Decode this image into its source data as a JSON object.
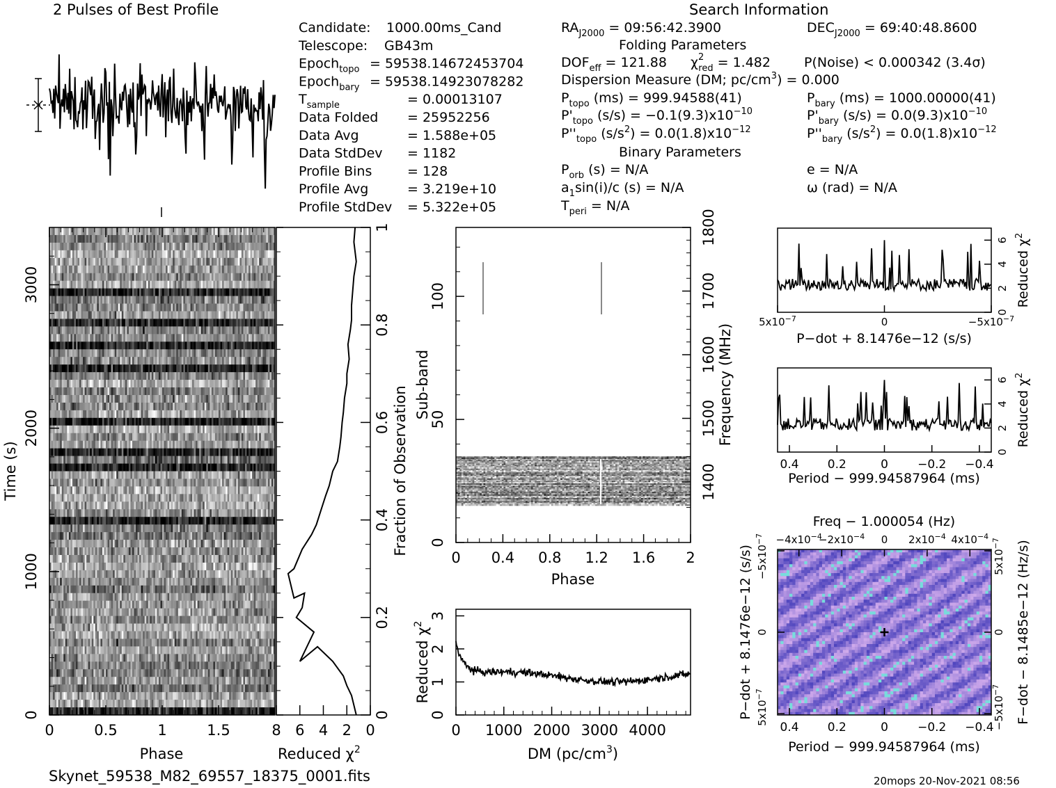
{
  "title_profile": "2 Pulses of Best Profile",
  "title_search": "Search Information",
  "filename": "Skynet_59538_M82_69557_18375_0001.fits",
  "footer_stamp": "20mops 20-Nov-2021 08:56",
  "info_left": [
    {
      "label": "Candidate:",
      "sub": "",
      "value": "1000.00ms_Cand"
    },
    {
      "label": "Telescope:",
      "sub": "",
      "value": "GB43m"
    },
    {
      "label": "Epoch",
      "sub": "topo",
      "value": "= 59538.14672453704"
    },
    {
      "label": "Epoch",
      "sub": "bary",
      "value": "= 59538.14923078282"
    },
    {
      "label": "T",
      "sub": "sample",
      "value": "=   0.00013107"
    },
    {
      "label": "Data Folded",
      "sub": "",
      "value": "=   25952256"
    },
    {
      "label": "Data Avg",
      "sub": "",
      "value": "=   1.588e+05"
    },
    {
      "label": "Data StdDev",
      "sub": "",
      "value": "=   1182"
    },
    {
      "label": "Profile Bins",
      "sub": "",
      "value": "=   128"
    },
    {
      "label": "Profile Avg",
      "sub": "",
      "value": "=   3.219e+10"
    },
    {
      "label": "Profile StdDev",
      "sub": "",
      "value": "=   5.322e+05"
    }
  ],
  "info_right": {
    "ra": "RA",
    "ra_sub": "J2000",
    "ra_val": " = 09:56:42.3900",
    "dec": "DEC",
    "dec_sub": "J2000",
    "dec_val": " = 69:40:48.8600",
    "folding_header": "Folding Parameters",
    "dof": "DOF",
    "dof_sub": "eff",
    "dof_val": " = 121.88",
    "chi": "χ",
    "chi_sup": "2",
    "chi_sub": "red",
    "chi_val": " = 1.482",
    "pnoise": "P(Noise) < 0.000342   (3.4σ)",
    "dm_line": "Dispersion Measure (DM; pc/cm",
    "dm_sup": "3",
    "dm_val": ") = 0.000",
    "ptopo": "P",
    "ptopo_sub": "topo",
    "ptopo_val": " (ms) =  999.94588(41)",
    "pbary": "P",
    "pbary_sub": "bary",
    "pbary_val": " (ms) =  1000.00000(41)",
    "pdtopo": "P'",
    "pdtopo_sub": "topo",
    "pdtopo_val": " (s/s) = −0.1(9.3)x10",
    "pdtopo_exp": "−10",
    "pdbary": "P'",
    "pdbary_sub": "bary",
    "pdbary_val": " (s/s) = 0.0(9.3)x10",
    "pdbary_exp": "−10",
    "pddtopo": "P''",
    "pddtopo_sub": "topo",
    "pddtopo_val": " (s/s",
    "pddtopo_sup": "2",
    "pddtopo_val2": ") = 0.0(1.8)x10",
    "pddtopo_exp": "−12",
    "pddbary": "P''",
    "pddbary_sub": "bary",
    "pddbary_val": " (s/s",
    "pddbary_sup": "2",
    "pddbary_val2": ") = 0.0(1.8)x10",
    "pddbary_exp": "−12",
    "binary_header": "Binary Parameters",
    "porb": "P",
    "porb_sub": "orb",
    "porb_val": " (s) = N/A",
    "e_val": "e = N/A",
    "asini": "a",
    "asini_sub": "1",
    "asini_val": "sin(i)/c (s) = N/A",
    "omega_val": "ω (rad) = N/A",
    "tperi": "T",
    "tperi_sub": "peri",
    "tperi_val": " = N/A"
  },
  "chart_data": [
    {
      "type": "line",
      "id": "pulse-profile",
      "title": "2 Pulses of Best Profile",
      "xlim": [
        0,
        2
      ],
      "note": "noise-like profile, 2 cycles"
    },
    {
      "type": "heatmap",
      "id": "time-phase",
      "xlabel": "Phase",
      "ylabel": "Time (s)",
      "xticks": [
        "0",
        "0.5",
        "1",
        "1.5"
      ],
      "yticks": [
        "0",
        "1000",
        "2000",
        "3000"
      ],
      "ylim": [
        0,
        3400
      ],
      "xlim": [
        0,
        2
      ]
    },
    {
      "type": "line",
      "id": "reduced-chi2-vs-fraction",
      "xlabel": "Reduced χ",
      "xlabel_sup": "2",
      "ylabel": "Fraction of Observation",
      "xticks": [
        "8",
        "6",
        "4",
        "2",
        "0"
      ],
      "yticks": [
        "0",
        "0.2",
        "0.4",
        "0.6",
        "0.8",
        "1"
      ],
      "x": [
        1.2,
        1.6,
        2.0,
        2.3,
        2.6,
        3.2,
        4.5,
        6.0,
        4.8,
        6.3,
        5.8,
        5.6,
        6.5,
        7.0,
        6.5,
        5.8,
        5.0,
        4.6,
        4.2,
        3.8,
        3.5,
        3.2,
        2.8,
        2.6,
        2.5,
        2.4,
        2.3,
        2.2,
        2.0,
        2.0,
        1.8,
        1.9,
        1.7,
        1.6,
        1.6,
        1.5,
        1.4,
        1.2,
        1.4,
        1.3
      ],
      "y": [
        0.0,
        0.04,
        0.06,
        0.08,
        0.09,
        0.11,
        0.14,
        0.11,
        0.17,
        0.2,
        0.22,
        0.25,
        0.24,
        0.29,
        0.3,
        0.34,
        0.37,
        0.39,
        0.42,
        0.45,
        0.47,
        0.5,
        0.52,
        0.55,
        0.57,
        0.6,
        0.62,
        0.65,
        0.68,
        0.7,
        0.73,
        0.76,
        0.79,
        0.81,
        0.84,
        0.87,
        0.9,
        0.93,
        0.97,
        1.0
      ],
      "xlim": [
        8,
        0
      ],
      "ylim": [
        0,
        1
      ]
    },
    {
      "type": "heatmap",
      "id": "subband-phase",
      "xlabel": "Phase",
      "ylabel": "Sub-band",
      "ylabel_right": "Frequency (MHz)",
      "xticks": [
        "0",
        "0.4",
        "0.8",
        "1.2",
        "1.6",
        "2"
      ],
      "yticks": [
        "0",
        "50",
        "100"
      ],
      "yticks_right": [
        "1400",
        "1500",
        "1600",
        "1700",
        "1800"
      ],
      "ylim": [
        0,
        128
      ],
      "band": [
        15,
        35
      ]
    },
    {
      "type": "line",
      "id": "dm-curve",
      "xlabel": "DM (pc/cm",
      "xlabel_sup": "3",
      "xlabel_end": ")",
      "ylabel": "Reduced χ",
      "ylabel_sup": "2",
      "xticks": [
        "0",
        "1000",
        "2000",
        "3000",
        "4000"
      ],
      "yticks": [
        "0",
        "1",
        "2",
        "3"
      ],
      "xlim": [
        0,
        4900
      ],
      "ylim": [
        0,
        3.2
      ]
    },
    {
      "type": "line",
      "id": "pdot-chi2",
      "xlabel": "P−dot + 8.1476e−12 (s/s)",
      "ylabel": "Reduced χ",
      "ylabel_sup": "2",
      "xticks": [
        "5x10",
        "0",
        "−5x10"
      ],
      "xtick_exp": "−7",
      "yticks": [
        "0",
        "2",
        "4",
        "6"
      ],
      "ylim": [
        0,
        7
      ]
    },
    {
      "type": "line",
      "id": "period-chi2",
      "xlabel": "Period − 999.94587964 (ms)",
      "ylabel": "Reduced χ",
      "ylabel_sup": "2",
      "xticks": [
        "0.4",
        "0.2",
        "0",
        "−0.2",
        "−0.4"
      ],
      "yticks": [
        "0",
        "2",
        "4",
        "6"
      ],
      "ylim": [
        0,
        7
      ]
    },
    {
      "type": "heatmap",
      "id": "ppdot-plane",
      "title": "Freq − 1.000054 (Hz)",
      "xlabel": "Period − 999.94587964 (ms)",
      "ylabel": "P−dot + 8.1476e−12 (s/s)",
      "ylabel_right": "F−dot − 8.1485e−12 (Hz/s)",
      "xticks": [
        "0.4",
        "0.2",
        "0",
        "−0.2",
        "−0.4"
      ],
      "xticks_top": [
        "−4x10",
        "−2x10",
        "0",
        "2x10",
        "4x10"
      ],
      "xtick_top_exp": "−4",
      "yticks_left": [
        "5x10",
        "0",
        "−5x10"
      ],
      "ytick_exp": "−7",
      "yticks_right": [
        "−5x10",
        "0",
        "5x10"
      ]
    }
  ]
}
